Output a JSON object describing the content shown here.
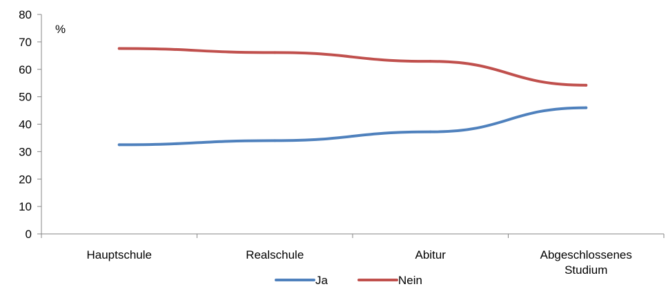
{
  "chart_data": {
    "type": "line",
    "title": "",
    "xlabel": "",
    "ylabel": "",
    "unit_label": "%",
    "categories": [
      "Hauptschule",
      "Realschule",
      "Abitur",
      "Abgeschlossenes Studium"
    ],
    "category_lines": [
      [
        "Hauptschule"
      ],
      [
        "Realschule"
      ],
      [
        "Abitur"
      ],
      [
        "Abgeschlossenes",
        "Studium"
      ]
    ],
    "ylim": [
      0,
      80
    ],
    "yticks": [
      0,
      10,
      20,
      30,
      40,
      50,
      60,
      70,
      80
    ],
    "grid": false,
    "legend_position": "bottom",
    "series": [
      {
        "name": "Ja",
        "color": "#4F81BD",
        "values": [
          32.5,
          34,
          37.2,
          46
        ]
      },
      {
        "name": "Nein",
        "color": "#C0504D",
        "values": [
          67.6,
          66.1,
          62.9,
          54.2
        ]
      }
    ]
  }
}
